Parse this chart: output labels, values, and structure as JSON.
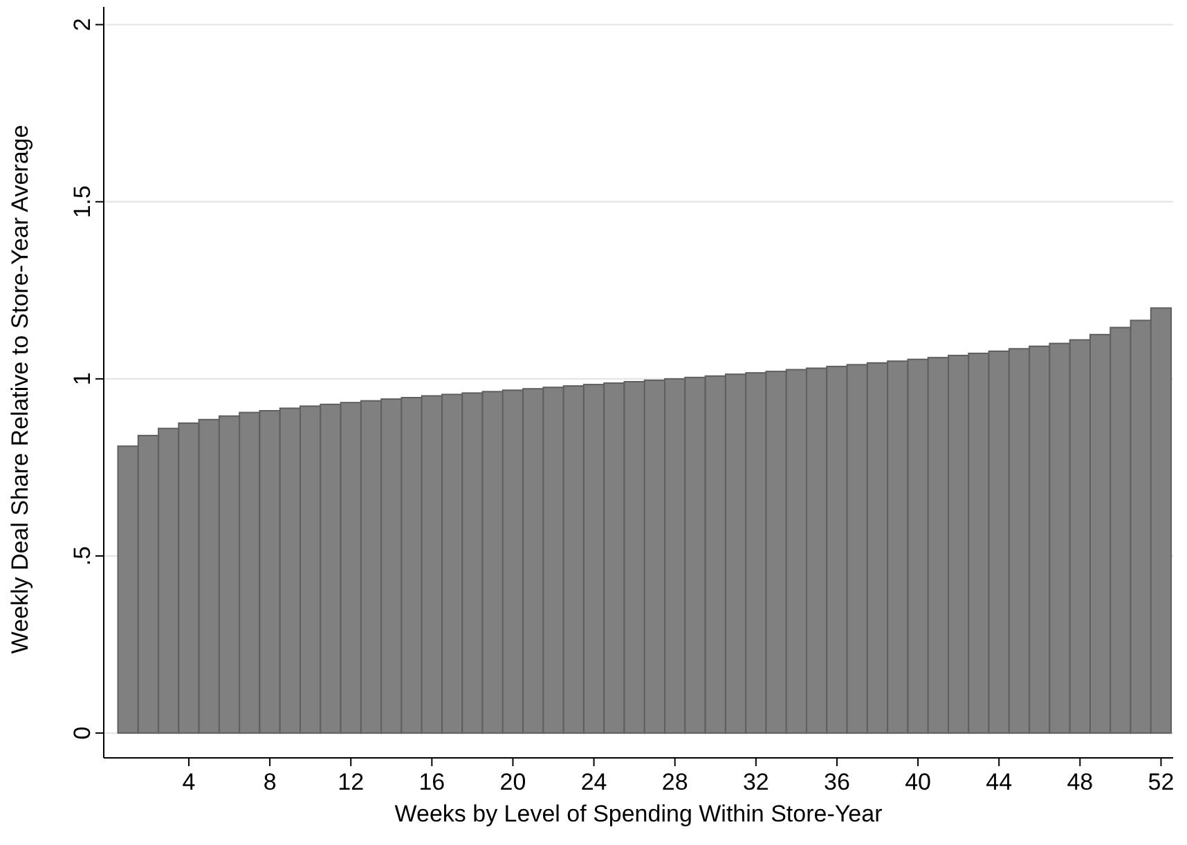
{
  "chart_data": {
    "type": "bar",
    "xlabel": "Weeks by Level of Spending Within Store-Year",
    "ylabel": "Weekly Deal Share Relative to Store-Year Average",
    "x": [
      1,
      2,
      3,
      4,
      5,
      6,
      7,
      8,
      9,
      10,
      11,
      12,
      13,
      14,
      15,
      16,
      17,
      18,
      19,
      20,
      21,
      22,
      23,
      24,
      25,
      26,
      27,
      28,
      29,
      30,
      31,
      32,
      33,
      34,
      35,
      36,
      37,
      38,
      39,
      40,
      41,
      42,
      43,
      44,
      45,
      46,
      47,
      48,
      49,
      50,
      51,
      52
    ],
    "values": [
      0.81,
      0.84,
      0.86,
      0.875,
      0.885,
      0.895,
      0.905,
      0.91,
      0.917,
      0.923,
      0.928,
      0.933,
      0.938,
      0.943,
      0.947,
      0.952,
      0.956,
      0.96,
      0.964,
      0.968,
      0.972,
      0.976,
      0.98,
      0.984,
      0.988,
      0.992,
      0.996,
      1.0,
      1.004,
      1.008,
      1.013,
      1.017,
      1.021,
      1.026,
      1.03,
      1.035,
      1.04,
      1.045,
      1.05,
      1.055,
      1.06,
      1.066,
      1.072,
      1.078,
      1.085,
      1.092,
      1.1,
      1.11,
      1.125,
      1.145,
      1.165,
      1.2
    ],
    "color": "#808080",
    "xlim": [
      -0.2,
      52.6
    ],
    "xticks": [
      4,
      8,
      12,
      16,
      20,
      24,
      28,
      32,
      36,
      40,
      44,
      48,
      52
    ],
    "ylim": [
      -0.07,
      2.05
    ],
    "yticks": [
      0,
      {
        "value": 0.5,
        "label": ".5"
      },
      1,
      {
        "value": 1.5,
        "label": "1.5"
      },
      2
    ],
    "grid": "y"
  }
}
